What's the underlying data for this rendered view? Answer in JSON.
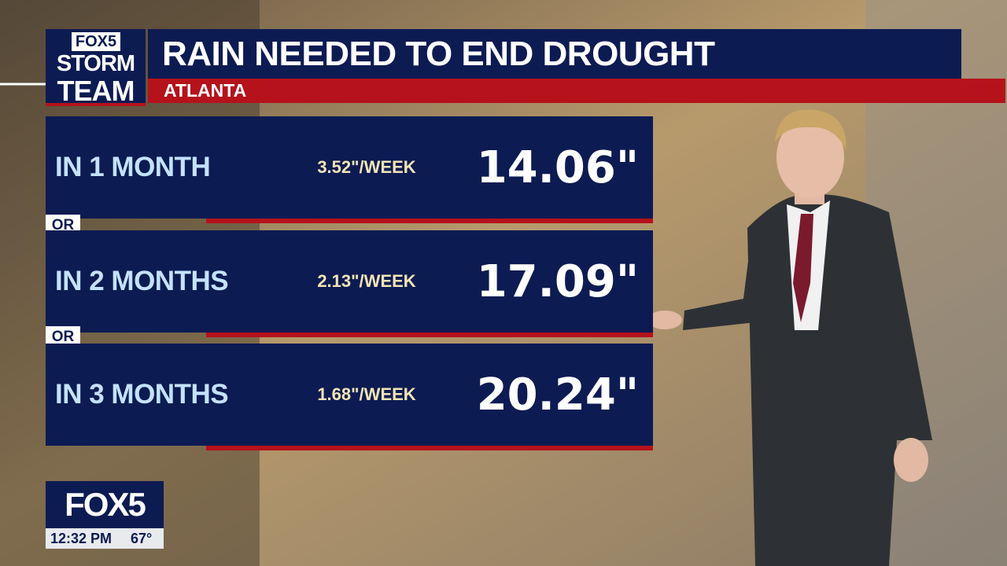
{
  "logo": {
    "brand": "FOX5",
    "line1": "STORM",
    "line2": "TEAM"
  },
  "header": {
    "title": "RAIN NEEDED TO END DROUGHT",
    "subtitle": "ATLANTA"
  },
  "rows": [
    {
      "label": "IN 1 MONTH",
      "rate": "3.52\"/WEEK",
      "total": "14.06\""
    },
    {
      "label": "IN 2 MONTHS",
      "rate": "2.13\"/WEEK",
      "total": "17.09\""
    },
    {
      "label": "IN 3 MONTHS",
      "rate": "1.68\"/WEEK",
      "total": "20.24\""
    }
  ],
  "separators": [
    "OR",
    "OR"
  ],
  "bug": {
    "brand": "FOX5",
    "time": "12:32 PM",
    "temperature": "67°"
  }
}
